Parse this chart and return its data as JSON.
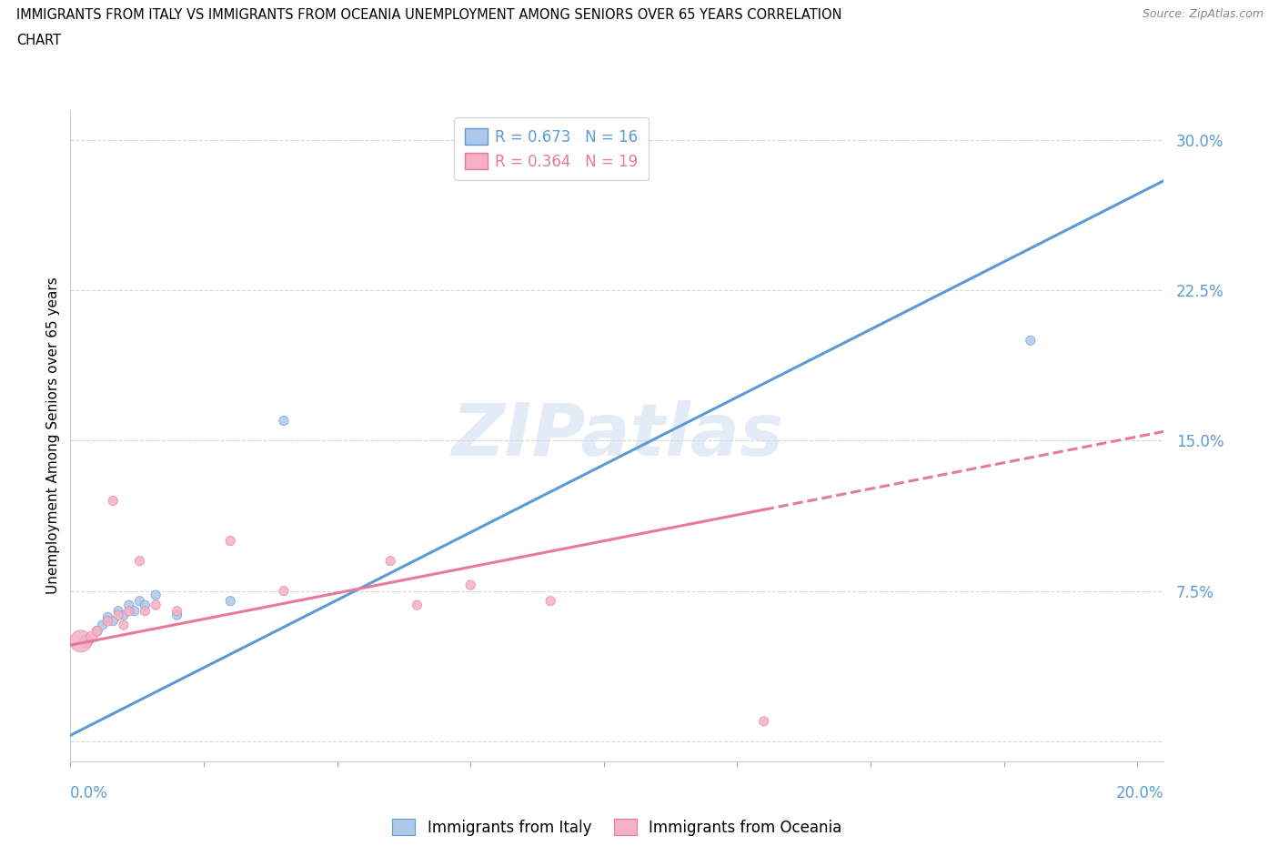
{
  "title_line1": "IMMIGRANTS FROM ITALY VS IMMIGRANTS FROM OCEANIA UNEMPLOYMENT AMONG SENIORS OVER 65 YEARS CORRELATION",
  "title_line2": "CHART",
  "source": "Source: ZipAtlas.com",
  "ylabel": "Unemployment Among Seniors over 65 years",
  "xlim": [
    0.0,
    0.205
  ],
  "ylim": [
    -0.01,
    0.315
  ],
  "italy_R": 0.673,
  "italy_N": 16,
  "oceania_R": 0.364,
  "oceania_N": 19,
  "italy_color": "#adc8e8",
  "oceania_color": "#f5b0c5",
  "italy_line_color": "#5b9bd5",
  "oceania_line_color": "#e8789a",
  "italy_scatter_x": [
    0.003,
    0.005,
    0.006,
    0.007,
    0.008,
    0.009,
    0.01,
    0.011,
    0.012,
    0.013,
    0.014,
    0.016,
    0.02,
    0.03,
    0.04,
    0.18
  ],
  "italy_scatter_y": [
    0.05,
    0.055,
    0.058,
    0.062,
    0.06,
    0.065,
    0.063,
    0.068,
    0.065,
    0.07,
    0.068,
    0.073,
    0.063,
    0.07,
    0.16,
    0.2
  ],
  "italy_sizes": [
    100,
    60,
    55,
    55,
    55,
    55,
    55,
    55,
    55,
    55,
    55,
    55,
    55,
    55,
    55,
    55
  ],
  "oceania_scatter_x": [
    0.002,
    0.004,
    0.005,
    0.007,
    0.008,
    0.009,
    0.01,
    0.011,
    0.013,
    0.014,
    0.016,
    0.02,
    0.03,
    0.04,
    0.06,
    0.065,
    0.075,
    0.09,
    0.13
  ],
  "oceania_scatter_y": [
    0.05,
    0.052,
    0.055,
    0.06,
    0.12,
    0.063,
    0.058,
    0.065,
    0.09,
    0.065,
    0.068,
    0.065,
    0.1,
    0.075,
    0.09,
    0.068,
    0.078,
    0.07,
    0.01
  ],
  "oceania_sizes": [
    300,
    80,
    65,
    60,
    55,
    55,
    55,
    55,
    55,
    55,
    55,
    55,
    55,
    55,
    55,
    55,
    55,
    55,
    55
  ],
  "watermark": "ZIPatlas",
  "background_color": "#ffffff",
  "grid_color": "#d8d8d8",
  "yticks": [
    0.0,
    0.075,
    0.15,
    0.225,
    0.3
  ],
  "ytick_labels": [
    "",
    "7.5%",
    "15.0%",
    "22.5%",
    "30.0%"
  ],
  "xtick_positions": [
    0.0,
    0.025,
    0.05,
    0.075,
    0.1,
    0.125,
    0.15,
    0.175,
    0.2
  ],
  "italy_line_slope": 1.35,
  "italy_line_intercept": 0.003,
  "oceania_line_slope": 0.52,
  "oceania_line_intercept": 0.048
}
